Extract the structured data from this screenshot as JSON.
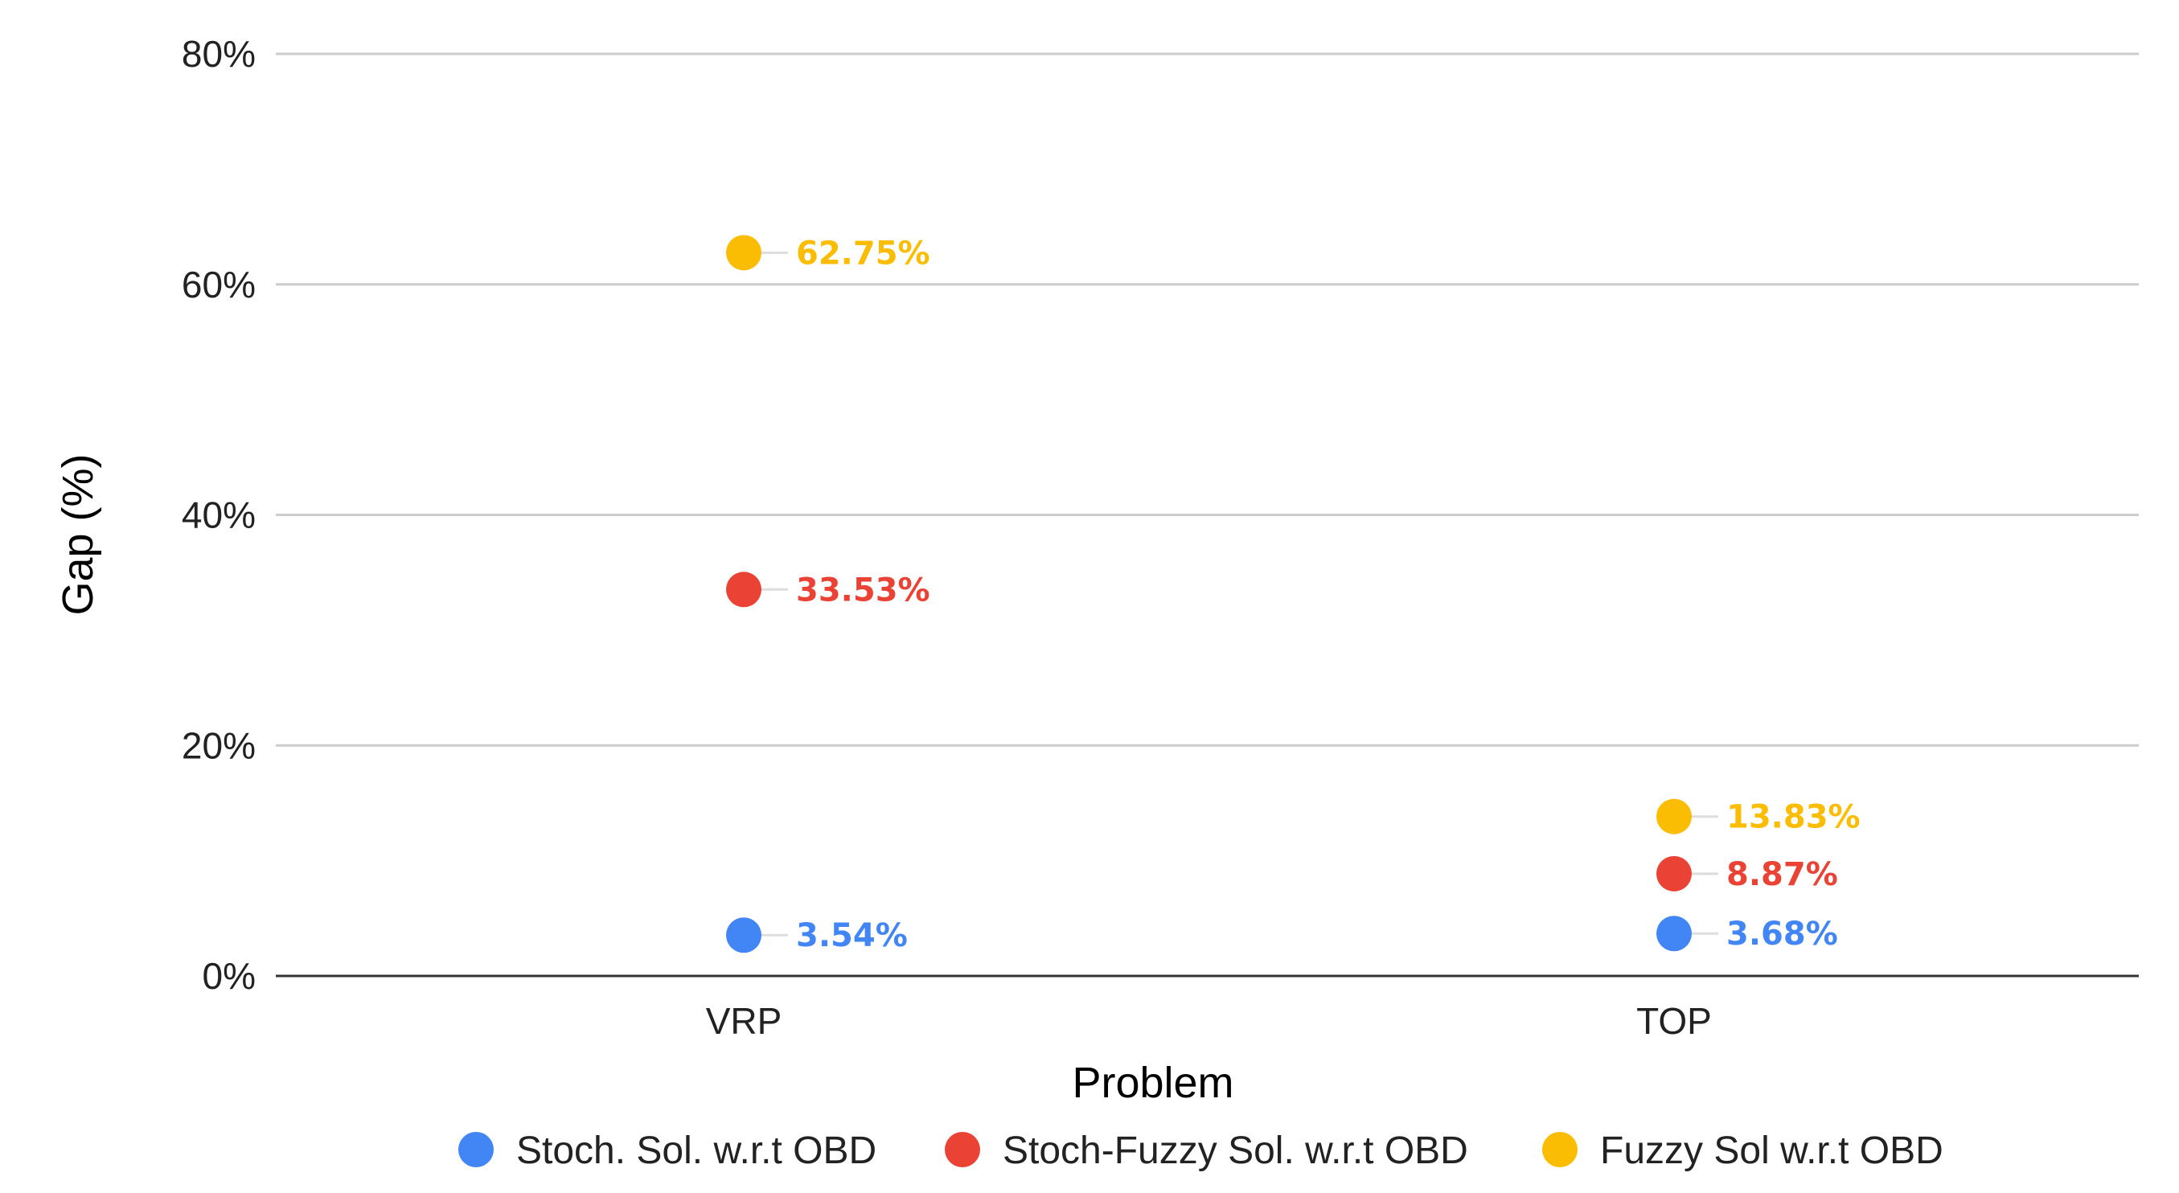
{
  "chart_data": {
    "type": "scatter",
    "title": "",
    "xlabel": "Problem",
    "ylabel": "Gap (%)",
    "categories": [
      "VRP",
      "TOP"
    ],
    "ylim": [
      0,
      80
    ],
    "yticks": [
      0,
      20,
      40,
      60,
      80
    ],
    "ytick_labels": [
      "0%",
      "20%",
      "40%",
      "60%",
      "80%"
    ],
    "grid": true,
    "legend_position": "bottom",
    "series": [
      {
        "name": "Stoch. Sol. w.r.t OBD",
        "color": "#4285F4",
        "values": [
          3.54,
          3.68
        ],
        "labels": [
          "3.54%",
          "3.68%"
        ]
      },
      {
        "name": "Stoch-Fuzzy Sol. w.r.t OBD",
        "color": "#EA4335",
        "values": [
          33.53,
          8.87
        ],
        "labels": [
          "33.53%",
          "8.87%"
        ]
      },
      {
        "name": "Fuzzy Sol w.r.t OBD",
        "color": "#FBBC04",
        "values": [
          62.75,
          13.83
        ],
        "labels": [
          "62.75%",
          "13.83%"
        ]
      }
    ]
  }
}
